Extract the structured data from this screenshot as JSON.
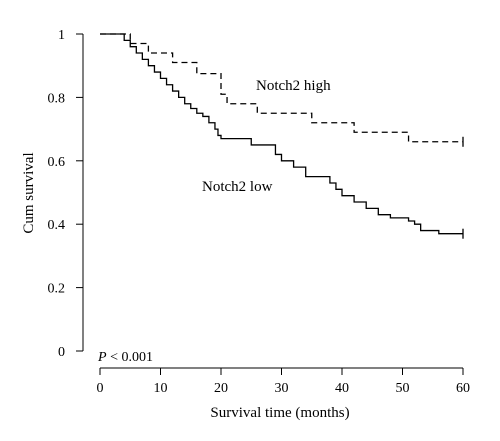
{
  "chart_data": {
    "type": "line",
    "subtype": "kaplan-meier",
    "xlabel": "Survival time (months)",
    "ylabel": "Cum survival",
    "xlim": [
      0,
      60
    ],
    "ylim": [
      0,
      1
    ],
    "xticks": [
      0,
      10,
      20,
      30,
      40,
      50,
      60
    ],
    "yticks": [
      0,
      0.2,
      0.4,
      0.6,
      0.8,
      1
    ],
    "ytick_labels": [
      "0",
      "0.2",
      "0.4",
      "0.6",
      "0.8",
      "1"
    ],
    "annotation": {
      "italic": "P",
      "rest": " < 0.001"
    },
    "grid": false,
    "legend": "none",
    "series": [
      {
        "name": "Notch2 high",
        "line_style": "dashed",
        "censored_at": 60,
        "steps": [
          [
            0,
            1.0
          ],
          [
            5,
            0.97
          ],
          [
            8,
            0.94
          ],
          [
            12,
            0.91
          ],
          [
            16,
            0.875
          ],
          [
            20,
            0.81
          ],
          [
            21,
            0.78
          ],
          [
            26,
            0.75
          ],
          [
            35,
            0.72
          ],
          [
            42,
            0.69
          ],
          [
            51,
            0.66
          ],
          [
            60,
            0.66
          ]
        ]
      },
      {
        "name": "Notch2 low",
        "line_style": "solid",
        "censored_at": 60,
        "steps": [
          [
            0,
            1.0
          ],
          [
            4,
            0.98
          ],
          [
            5,
            0.96
          ],
          [
            6,
            0.94
          ],
          [
            7,
            0.92
          ],
          [
            8,
            0.9
          ],
          [
            9,
            0.88
          ],
          [
            10,
            0.86
          ],
          [
            11,
            0.84
          ],
          [
            12,
            0.82
          ],
          [
            13,
            0.8
          ],
          [
            14,
            0.78
          ],
          [
            15,
            0.765
          ],
          [
            16,
            0.75
          ],
          [
            17,
            0.74
          ],
          [
            18,
            0.72
          ],
          [
            19,
            0.7
          ],
          [
            19.5,
            0.68
          ],
          [
            20,
            0.67
          ],
          [
            25,
            0.65
          ],
          [
            29,
            0.62
          ],
          [
            30,
            0.6
          ],
          [
            32,
            0.58
          ],
          [
            34,
            0.55
          ],
          [
            38,
            0.53
          ],
          [
            39,
            0.51
          ],
          [
            40,
            0.49
          ],
          [
            42,
            0.47
          ],
          [
            44,
            0.45
          ],
          [
            46,
            0.43
          ],
          [
            48,
            0.42
          ],
          [
            51,
            0.41
          ],
          [
            52,
            0.4
          ],
          [
            53,
            0.38
          ],
          [
            56,
            0.37
          ],
          [
            60,
            0.37
          ]
        ]
      }
    ]
  }
}
